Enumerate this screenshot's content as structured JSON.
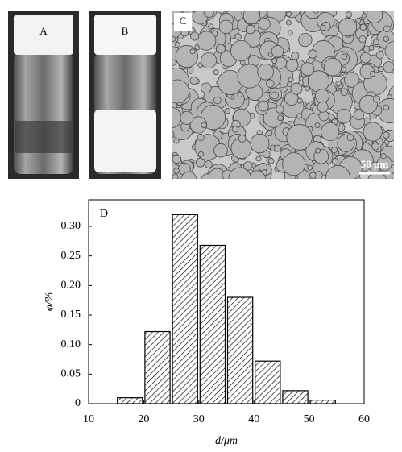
{
  "photos": {
    "labels": [
      "A",
      "B",
      "C"
    ],
    "scale_bar": "50 μm"
  },
  "chart_data": {
    "type": "histogram",
    "label": "D",
    "xlabel": "d/μm",
    "ylabel": "φ/%",
    "bins": [
      15,
      20,
      25,
      30,
      35,
      40,
      45,
      50,
      55
    ],
    "values": [
      0.01,
      0.122,
      0.32,
      0.268,
      0.18,
      0.072,
      0.022,
      0.006
    ],
    "color": "#000000",
    "hatch": true,
    "xlim": [
      10,
      60
    ],
    "xticks": [
      10,
      20,
      30,
      40,
      50,
      60
    ],
    "ylim": [
      0,
      0.345
    ],
    "yticks": [
      0,
      0.05,
      {
        "value": 0.1,
        "label": "0.10"
      },
      0.15,
      {
        "value": 0.2,
        "label": "0.20"
      },
      0.25,
      {
        "value": 0.3,
        "label": "0.30"
      }
    ]
  }
}
